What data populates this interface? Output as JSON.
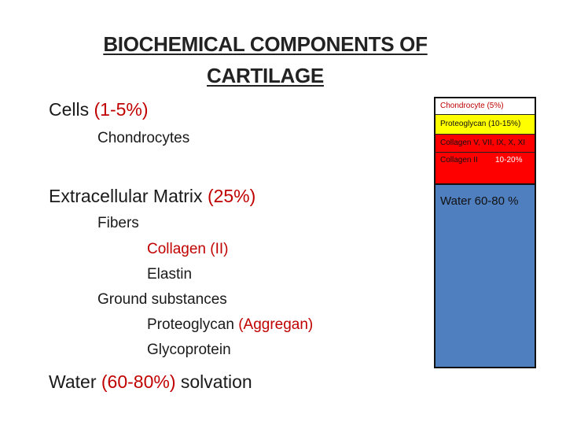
{
  "slide": {
    "title_line1": "BIOCHEMICAL COMPONENTS OF",
    "title_line2": "CARTILAGE",
    "cells": {
      "label": "Cells",
      "pct": "(1-5%)"
    },
    "chondrocytes": "Chondrocytes",
    "ecm": {
      "label": "Extracellular Matrix",
      "pct": "(25%)"
    },
    "fibers": "Fibers",
    "collagen": "Collagen (II)",
    "elastin": "Elastin",
    "ground": "Ground substances",
    "proteoglycan": {
      "label": "Proteoglycan",
      "note": "(Aggregan)"
    },
    "glycoprotein": "Glycoprotein",
    "water": {
      "label": "Water",
      "pct": "(60-80%)",
      "suffix": "solvation"
    }
  },
  "composition_bar": {
    "segments": [
      {
        "label": "Chondrocyte (5%)",
        "color": "#ffffff"
      },
      {
        "label": "Proteoglycan (10-15%)",
        "color": "#ffff00"
      },
      {
        "label": "Collagen V, VII, IX, X, XI",
        "color": "#ff0000"
      },
      {
        "label": "Collagen II",
        "pct": "10-20%",
        "color": "#ff0000"
      }
    ],
    "water": {
      "label": "Water 60-80 %",
      "color": "#4f7fbf"
    }
  }
}
